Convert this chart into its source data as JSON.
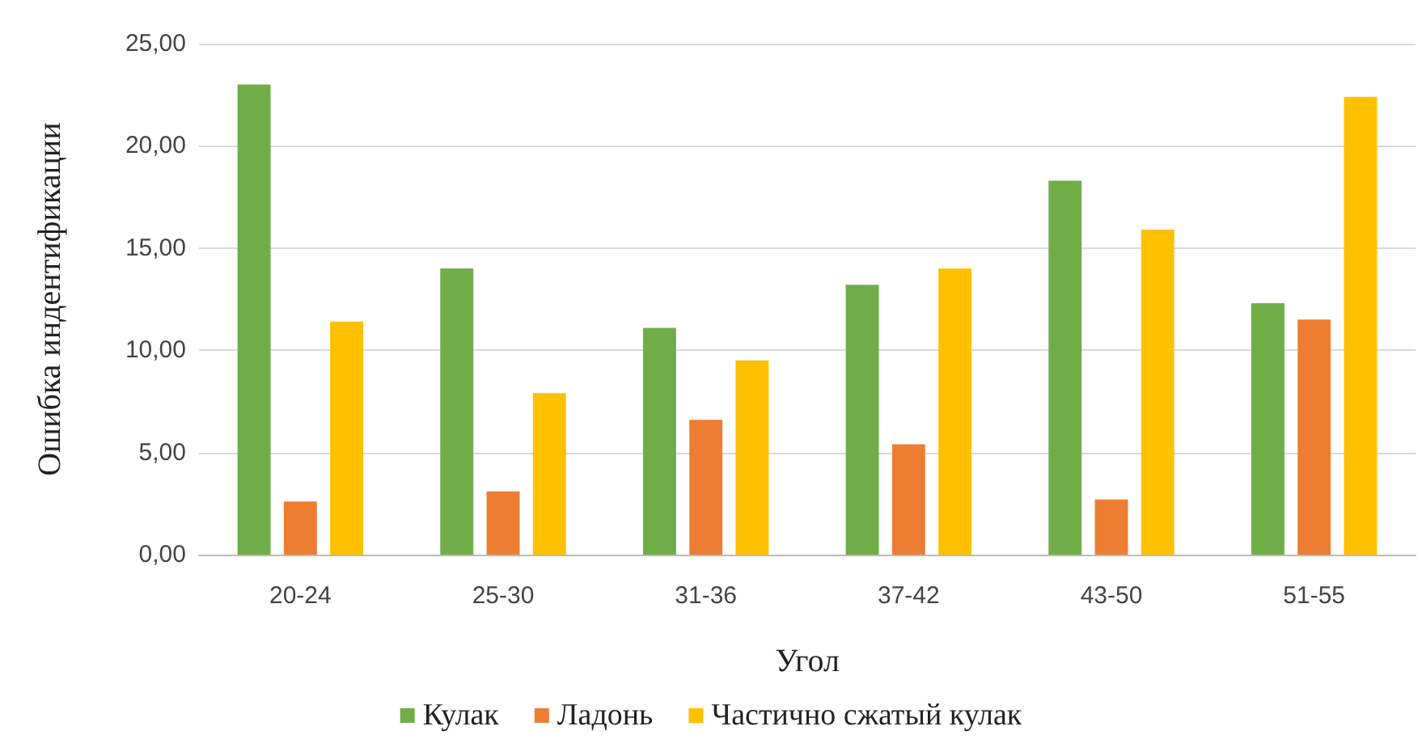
{
  "chart_data": {
    "type": "bar",
    "xlabel": "Угол",
    "ylabel": "Ошибка индентификации",
    "categories": [
      "20-24",
      "25-30",
      "31-36",
      "37-42",
      "43-50",
      "51-55"
    ],
    "series": [
      {
        "name": "Кулак",
        "color": "#70ad47",
        "values": [
          23.0,
          14.0,
          11.1,
          13.2,
          18.3,
          12.3
        ]
      },
      {
        "name": "Ладонь",
        "color": "#ed7d31",
        "values": [
          2.6,
          3.1,
          6.6,
          5.4,
          2.7,
          11.5
        ]
      },
      {
        "name": "Частично сжатый кулак",
        "color": "#ffc000",
        "values": [
          11.4,
          7.9,
          9.5,
          14.0,
          15.9,
          22.4
        ]
      }
    ],
    "ylim": [
      0,
      25
    ],
    "yticks": [
      {
        "value": 0,
        "label": "0,00"
      },
      {
        "value": 5,
        "label": "5,00"
      },
      {
        "value": 10,
        "label": "10,00"
      },
      {
        "value": 15,
        "label": "15,00"
      },
      {
        "value": 20,
        "label": "20,00"
      },
      {
        "value": 25,
        "label": "25,00"
      }
    ],
    "grid": "y",
    "legend": "bottom"
  }
}
